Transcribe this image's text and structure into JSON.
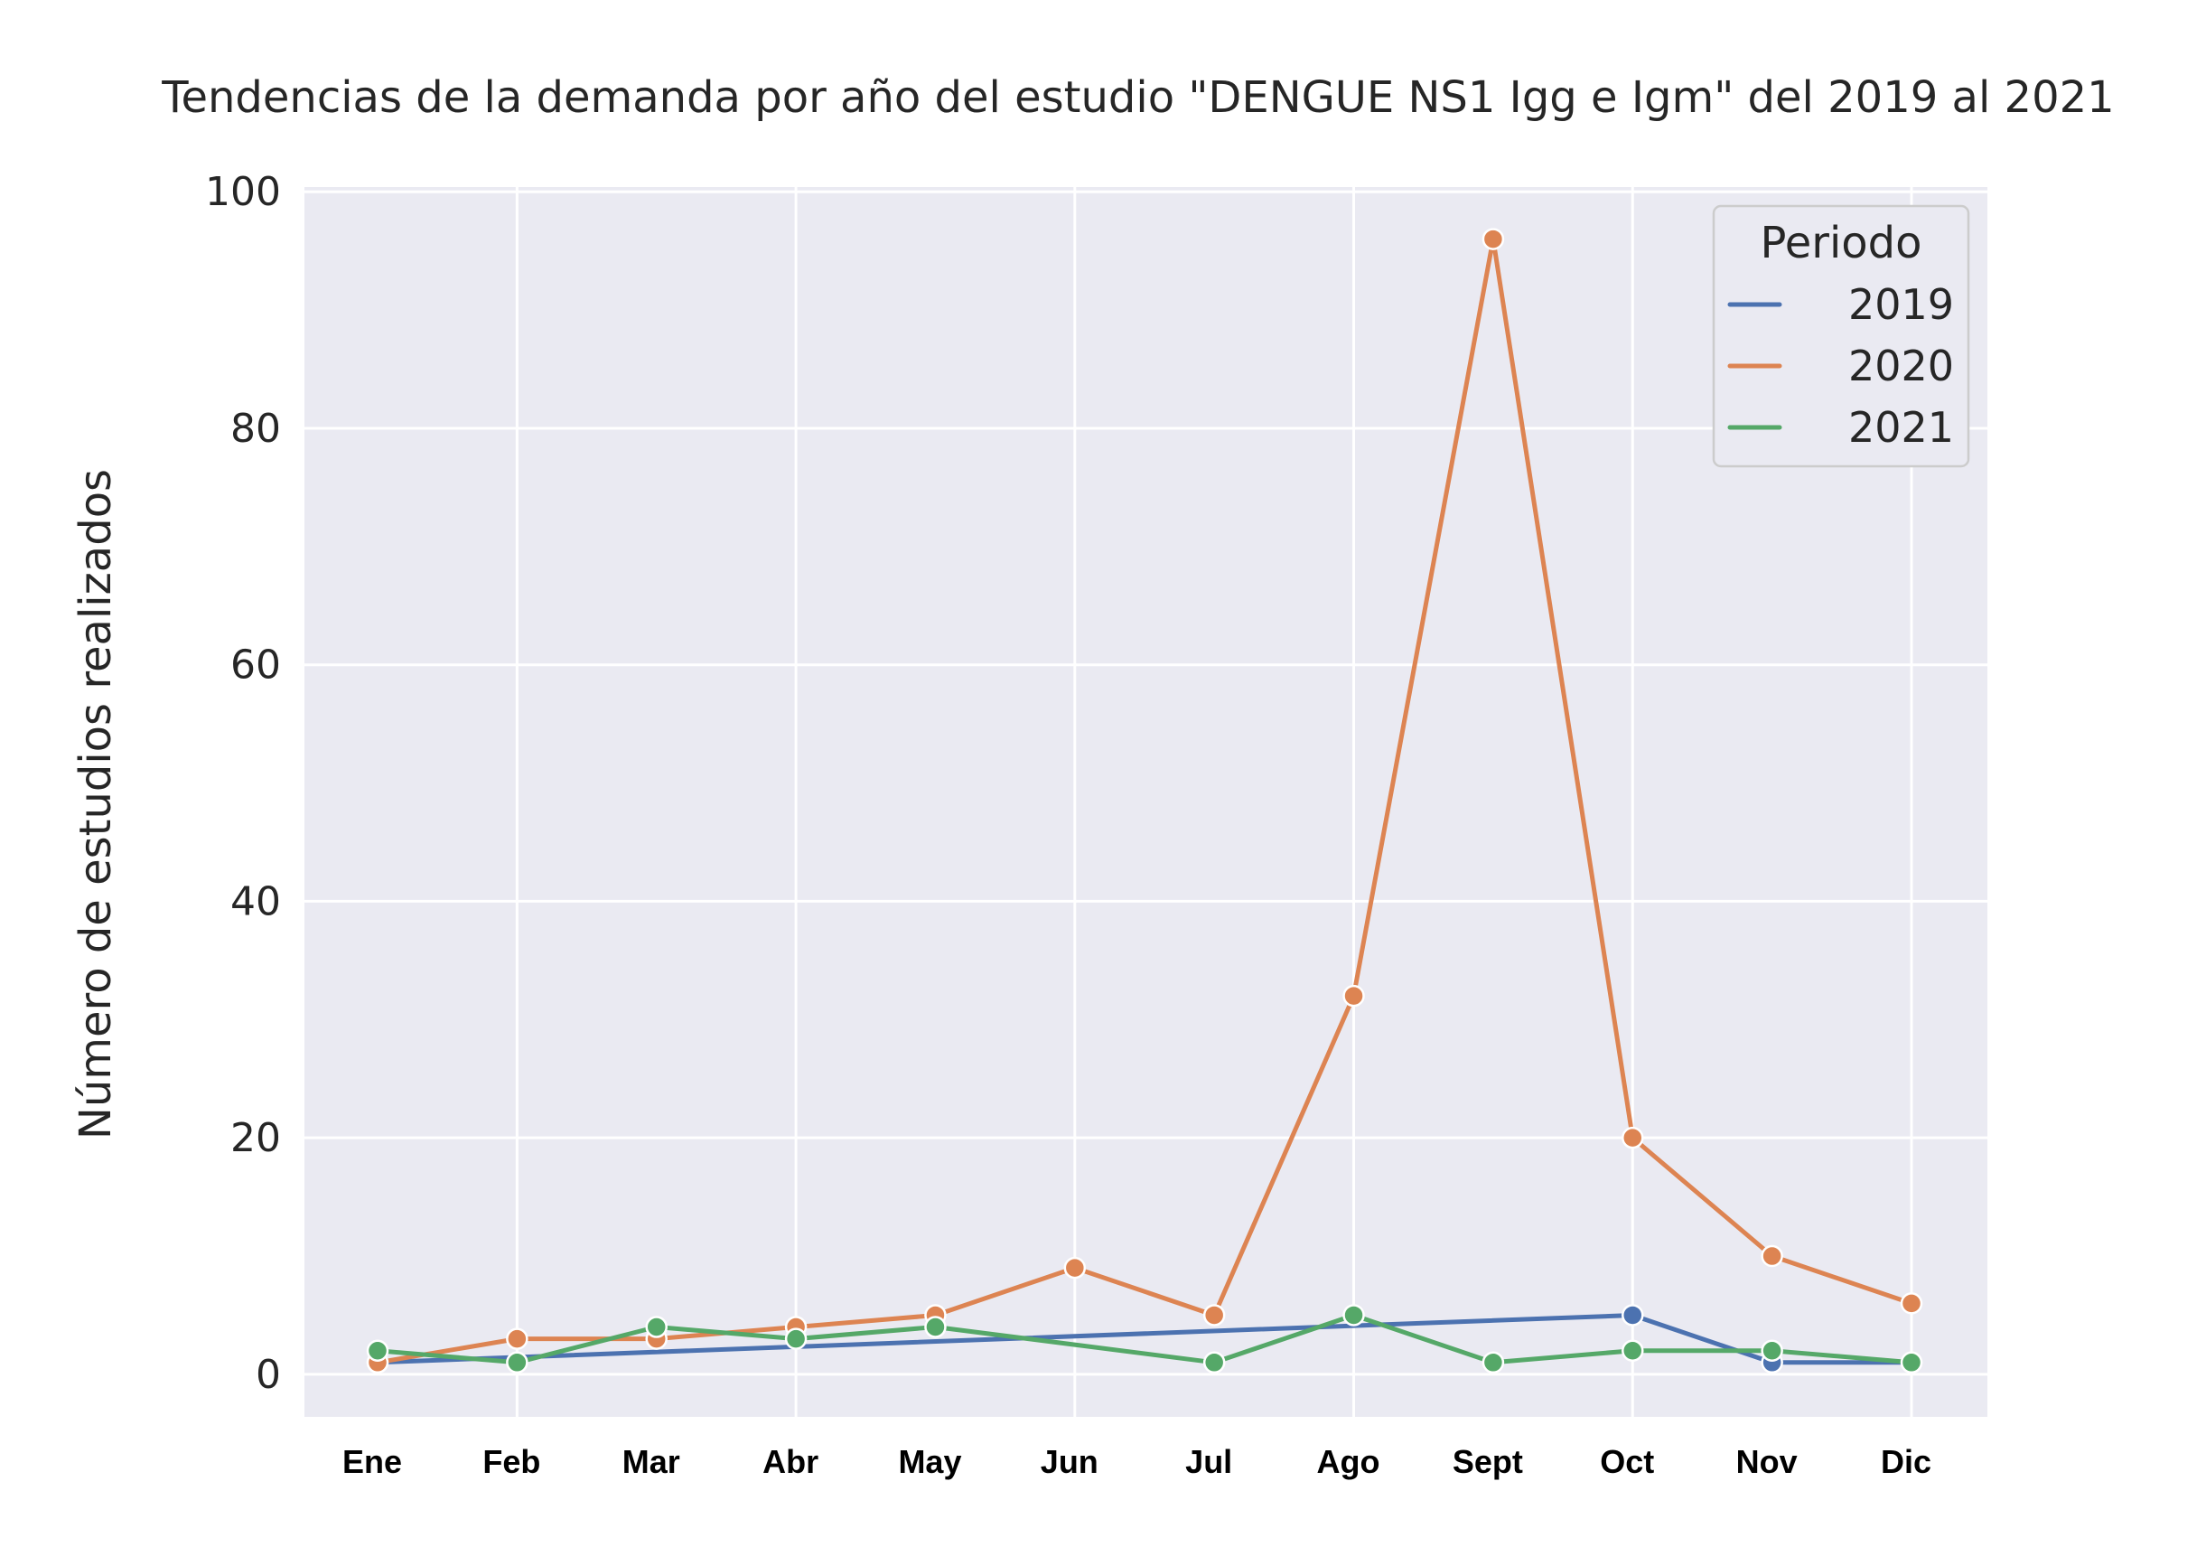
{
  "chart_data": {
    "type": "line",
    "title": "Tendencias de la demanda por año del estudio \"DENGUE NS1 Igg e Igm\" del 2019 al 2021",
    "xlabel": "",
    "ylabel": "Número de estudios realizados",
    "categories": [
      "Ene",
      "Feb",
      "Mar",
      "Abr",
      "May",
      "Jun",
      "Jul",
      "Ago",
      "Sept",
      "Oct",
      "Nov",
      "Dic"
    ],
    "yticks": [
      0,
      20,
      40,
      60,
      80,
      100
    ],
    "ylim": [
      -3.6,
      100.4
    ],
    "grid": true,
    "legend": {
      "title": "Periodo",
      "placement": "top-right"
    },
    "series": [
      {
        "name": "2019",
        "color": "#4c72b0",
        "points": [
          {
            "x": "Ene",
            "y": 1
          },
          {
            "x": "Oct",
            "y": 5
          },
          {
            "x": "Nov",
            "y": 1
          },
          {
            "x": "Dic",
            "y": 1
          }
        ]
      },
      {
        "name": "2020",
        "color": "#dd8452",
        "points": [
          {
            "x": "Ene",
            "y": 1
          },
          {
            "x": "Feb",
            "y": 3
          },
          {
            "x": "Mar",
            "y": 3
          },
          {
            "x": "Abr",
            "y": 4
          },
          {
            "x": "May",
            "y": 5
          },
          {
            "x": "Jun",
            "y": 9
          },
          {
            "x": "Jul",
            "y": 5
          },
          {
            "x": "Ago",
            "y": 32
          },
          {
            "x": "Sept",
            "y": 96
          },
          {
            "x": "Oct",
            "y": 20
          },
          {
            "x": "Nov",
            "y": 10
          },
          {
            "x": "Dic",
            "y": 6
          }
        ]
      },
      {
        "name": "2021",
        "color": "#55a868",
        "points": [
          {
            "x": "Ene",
            "y": 2
          },
          {
            "x": "Feb",
            "y": 1
          },
          {
            "x": "Mar",
            "y": 4
          },
          {
            "x": "Abr",
            "y": 3
          },
          {
            "x": "May",
            "y": 4
          },
          {
            "x": "Jul",
            "y": 1
          },
          {
            "x": "Ago",
            "y": 5
          },
          {
            "x": "Sept",
            "y": 1
          },
          {
            "x": "Oct",
            "y": 2
          },
          {
            "x": "Nov",
            "y": 2
          },
          {
            "x": "Dic",
            "y": 1
          }
        ]
      }
    ],
    "colors": {
      "plot_background": "#eaeaf2",
      "grid": "#ffffff"
    }
  }
}
